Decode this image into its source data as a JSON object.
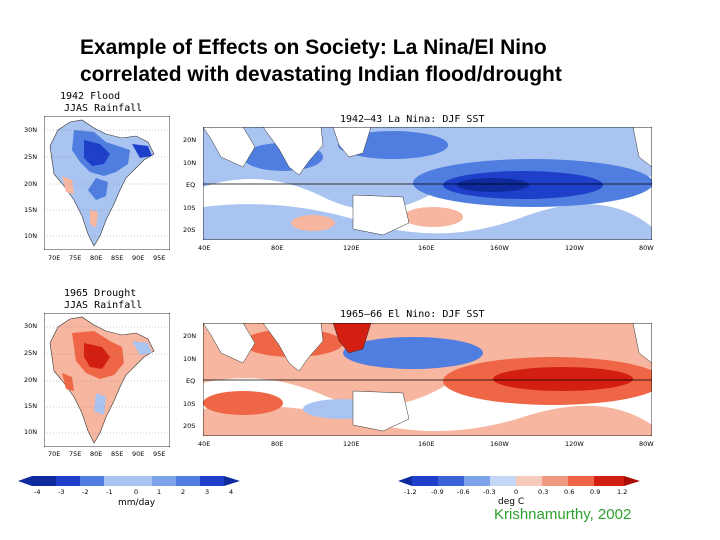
{
  "title": {
    "line1": "Example of Effects on Society: La Nina/El Nino",
    "line2": "correlated with devastating Indian flood/drought"
  },
  "panels": {
    "flood_rain": {
      "caption1": "1942 Flood",
      "caption2": "JJAS Rainfall",
      "lat_ticks": [
        "30N",
        "25N",
        "20N",
        "15N",
        "10N"
      ],
      "lon_ticks": [
        "70E",
        "75E",
        "80E",
        "85E",
        "90E",
        "95E"
      ]
    },
    "lanina_sst": {
      "caption": "1942–43 La Nina: DJF SST",
      "lat_ticks": [
        "20N",
        "10N",
        "EQ",
        "10S",
        "20S"
      ],
      "lon_ticks": [
        "40E",
        "80E",
        "120E",
        "160E",
        "160W",
        "120W",
        "80W"
      ]
    },
    "drought_rain": {
      "caption1": "1965 Drought",
      "caption2": "JJAS Rainfall",
      "lat_ticks": [
        "30N",
        "25N",
        "20N",
        "15N",
        "10N"
      ],
      "lon_ticks": [
        "70E",
        "75E",
        "80E",
        "85E",
        "90E",
        "95E"
      ]
    },
    "elnino_sst": {
      "caption": "1965–66 El Nino: DJF SST",
      "lat_ticks": [
        "20N",
        "10N",
        "EQ",
        "10S",
        "20S"
      ],
      "lon_ticks": [
        "40E",
        "80E",
        "120E",
        "160E",
        "160W",
        "120W",
        "80W"
      ]
    }
  },
  "colorbars": {
    "rain": {
      "ticks": [
        "-4",
        "-3",
        "-2",
        "-1",
        "0",
        "1",
        "2",
        "3",
        "4"
      ],
      "unit": "mm/day"
    },
    "sst": {
      "ticks": [
        "-1.2",
        "-0.9",
        "-0.6",
        "-0.3",
        "0",
        "0.3",
        "0.6",
        "0.9",
        "1.2"
      ],
      "unit": "deg C"
    }
  },
  "colors": {
    "strong_blue": "#1d3fc9",
    "mid_blue": "#4f7de0",
    "light_blue": "#a9c4f0",
    "white": "#ffffff",
    "light_red": "#f7b6a0",
    "mid_red": "#ee6646",
    "strong_red": "#d21f12",
    "credit": "#2ca02c"
  },
  "credit": "Krishnamurthy, 2002"
}
